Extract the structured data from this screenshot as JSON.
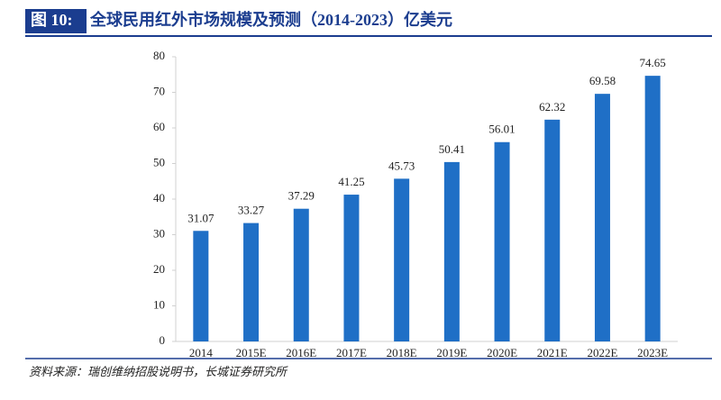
{
  "header": {
    "label": "图 10:",
    "title": "全球民用红外市场规模及预测（2014-2023）亿美元"
  },
  "chart_data": {
    "type": "bar",
    "categories": [
      "2014",
      "2015E",
      "2016E",
      "2017E",
      "2018E",
      "2019E",
      "2020E",
      "2021E",
      "2022E",
      "2023E"
    ],
    "values": [
      31.07,
      33.27,
      37.29,
      41.25,
      45.73,
      50.41,
      56.01,
      62.32,
      69.58,
      74.65
    ],
    "color": "#1f6fc6",
    "ylim": [
      0,
      80
    ],
    "yticks": [
      0,
      10,
      20,
      30,
      40,
      50,
      60,
      70,
      80
    ]
  },
  "source": "资料来源：瑞创维纳招股说明书，长城证券研究所"
}
